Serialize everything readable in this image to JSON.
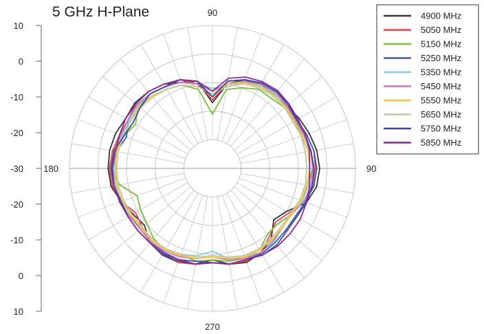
{
  "chart_data": {
    "type": "polar-line",
    "title": "5 GHz H-Plane",
    "angle_labels": {
      "top": "90",
      "right": "90",
      "bottom": "270",
      "left": "180"
    },
    "radial_ticks": [
      "10",
      "0",
      "-10",
      "-20",
      "-30",
      "-20",
      "-10",
      "0",
      "10"
    ],
    "rlim": [
      -40,
      10
    ],
    "angle_step_deg": 10,
    "grid": true,
    "legend_position": "top-right",
    "angles_deg": [
      0,
      10,
      20,
      30,
      40,
      50,
      60,
      70,
      80,
      90,
      100,
      110,
      120,
      130,
      140,
      150,
      160,
      170,
      180,
      190,
      200,
      210,
      220,
      230,
      240,
      250,
      260,
      270,
      280,
      290,
      300,
      310,
      320,
      330,
      340,
      350
    ],
    "series": [
      {
        "name": "4900 MHz",
        "color": "#333333",
        "values": [
          -2.5,
          -3,
          -4,
          -5,
          -6,
          -6.5,
          -6,
          -7,
          -10,
          -17,
          -9,
          -8,
          -6,
          -5,
          -4.5,
          -5,
          -4,
          -3.5,
          -3.5,
          -4,
          -6,
          -8,
          -9,
          -6,
          -5,
          -5,
          -6,
          -8,
          -6,
          -5,
          -6,
          -8,
          -12,
          -10,
          -5,
          -3
        ]
      },
      {
        "name": "5050 MHz",
        "color": "#e8444c",
        "values": [
          -4,
          -4,
          -5,
          -6,
          -6,
          -5.5,
          -6,
          -8,
          -10,
          -16,
          -10,
          -7,
          -6,
          -5,
          -5,
          -6,
          -5.5,
          -4.5,
          -4,
          -4.5,
          -6,
          -9,
          -8,
          -6,
          -5.5,
          -5,
          -6,
          -7,
          -6,
          -5.5,
          -6,
          -9,
          -11,
          -9,
          -6,
          -4.5
        ]
      },
      {
        "name": "5150 MHz",
        "color": "#7cbd3f",
        "values": [
          -5,
          -5,
          -6,
          -7,
          -7,
          -8,
          -8,
          -10,
          -12,
          -21,
          -12,
          -9,
          -8,
          -7,
          -6,
          -9,
          -7,
          -5.5,
          -5,
          -7,
          -12,
          -11,
          -10,
          -8,
          -7,
          -8,
          -7,
          -8,
          -7,
          -6.5,
          -7,
          -10,
          -10,
          -8,
          -7,
          -6
        ]
      },
      {
        "name": "5250 MHz",
        "color": "#3e57a9",
        "values": [
          -3.5,
          -4,
          -5,
          -6,
          -5.5,
          -5,
          -5.5,
          -7,
          -9,
          -15,
          -10,
          -8,
          -7,
          -6,
          -5.5,
          -6,
          -8,
          -6,
          -5,
          -5.5,
          -6,
          -7,
          -7,
          -6.5,
          -6,
          -6,
          -7,
          -7,
          -6,
          -6,
          -5.5,
          -6,
          -6.5,
          -6.5,
          -5.5,
          -4
        ]
      },
      {
        "name": "5350 MHz",
        "color": "#86cde0",
        "values": [
          -6,
          -6,
          -7,
          -7,
          -6.5,
          -6,
          -6.5,
          -8,
          -11,
          -12,
          -10,
          -8,
          -7,
          -6,
          -6,
          -6.5,
          -6.5,
          -6,
          -5.5,
          -5.5,
          -6,
          -7,
          -8,
          -7,
          -7,
          -8,
          -9,
          -11,
          -8,
          -7,
          -6,
          -6.5,
          -8,
          -8,
          -6.5,
          -6
        ]
      },
      {
        "name": "5450 MHz",
        "color": "#c57bbd",
        "values": [
          -5,
          -5,
          -6,
          -6.5,
          -6,
          -5.5,
          -6,
          -7.5,
          -10,
          -13,
          -10,
          -8,
          -7,
          -6,
          -5.5,
          -6,
          -6,
          -5,
          -5,
          -5,
          -5.5,
          -6.5,
          -7,
          -6.5,
          -6.5,
          -7,
          -8,
          -9,
          -7.5,
          -6.5,
          -6,
          -7,
          -8,
          -8,
          -6,
          -5
        ]
      },
      {
        "name": "5550 MHz",
        "color": "#f6c33e",
        "values": [
          -6,
          -6,
          -6.5,
          -7,
          -6.5,
          -6.5,
          -7,
          -8,
          -10,
          -14,
          -11,
          -9,
          -8,
          -7,
          -6.5,
          -7,
          -7,
          -6,
          -6,
          -6,
          -6.5,
          -7,
          -7.5,
          -7,
          -7,
          -7.5,
          -8,
          -9,
          -8,
          -7,
          -7,
          -7.5,
          -8,
          -8,
          -7,
          -6.5
        ]
      },
      {
        "name": "5650 MHz",
        "color": "#c6c59d",
        "values": [
          -7,
          -7,
          -7,
          -7.5,
          -7,
          -7,
          -7.5,
          -8.5,
          -11,
          -14,
          -11,
          -9,
          -8,
          -7.5,
          -7,
          -7,
          -7,
          -6.5,
          -6.5,
          -6.5,
          -7,
          -7.5,
          -8,
          -7.5,
          -7.5,
          -8,
          -8.5,
          -9.5,
          -8.5,
          -7.5,
          -7.5,
          -8,
          -8.5,
          -8.5,
          -7.5,
          -7
        ]
      },
      {
        "name": "5750 MHz",
        "color": "#3a4796",
        "values": [
          -4.5,
          -5,
          -5.5,
          -6,
          -5,
          -5,
          -5.5,
          -7,
          -9,
          -15,
          -9,
          -7,
          -7,
          -6,
          -7,
          -8,
          -7,
          -5,
          -4.5,
          -5,
          -6,
          -6,
          -6,
          -6,
          -5,
          -5.5,
          -6,
          -7,
          -6,
          -6,
          -5,
          -5,
          -6,
          -6,
          -5,
          -4.5
        ]
      },
      {
        "name": "5850 MHz",
        "color": "#8b2a8f",
        "values": [
          -6,
          -5.5,
          -5.5,
          -5.5,
          -5,
          -4.5,
          -5,
          -6,
          -8,
          -13,
          -9,
          -7,
          -6,
          -5,
          -5,
          -5,
          -5.5,
          -5.5,
          -5,
          -5,
          -5.5,
          -6,
          -6,
          -6,
          -5.5,
          -6,
          -6,
          -7,
          -6,
          -6,
          -5,
          -4.5,
          -4.5,
          -4.5,
          -5,
          -5.5
        ]
      }
    ]
  }
}
